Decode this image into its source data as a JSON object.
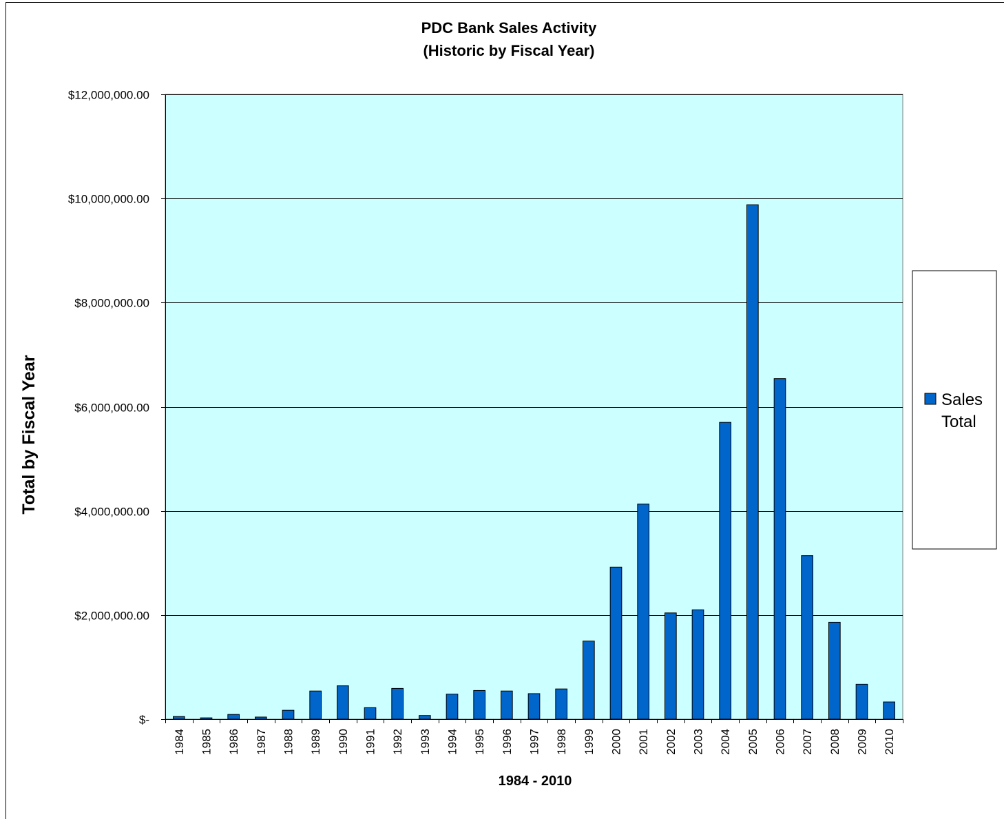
{
  "chart_data": {
    "type": "bar",
    "title": "PDC Bank Sales Activity",
    "subtitle": "(Historic by Fiscal Year)",
    "xlabel": "1984 - 2010",
    "ylabel": "Total by Fiscal Year",
    "categories": [
      "1984",
      "1985",
      "1986",
      "1987",
      "1988",
      "1989",
      "1990",
      "1991",
      "1992",
      "1993",
      "1994",
      "1995",
      "1996",
      "1997",
      "1998",
      "1999",
      "2000",
      "2001",
      "2002",
      "2003",
      "2004",
      "2005",
      "2006",
      "2007",
      "2008",
      "2009",
      "2010"
    ],
    "series": [
      {
        "name": "Sales Total",
        "legend_line1": "Sales",
        "legend_line2": "Total",
        "color": "#0066CC",
        "values": [
          50000,
          25000,
          90000,
          40000,
          170000,
          540000,
          640000,
          220000,
          590000,
          70000,
          480000,
          550000,
          540000,
          490000,
          580000,
          1500000,
          2920000,
          4130000,
          2040000,
          2100000,
          5700000,
          9880000,
          6540000,
          3140000,
          1860000,
          670000,
          330000
        ]
      }
    ],
    "ylim": [
      0,
      12000000
    ],
    "ytick_labels": [
      "$-",
      "$2,000,000.00",
      "$4,000,000.00",
      "$6,000,000.00",
      "$8,000,000.00",
      "$10,000,000.00",
      "$12,000,000.00"
    ],
    "ytick_values": [
      0,
      2000000,
      4000000,
      6000000,
      8000000,
      10000000,
      12000000
    ],
    "grid": true,
    "legend_position": "right",
    "plot_background": "#CCFFFF"
  }
}
